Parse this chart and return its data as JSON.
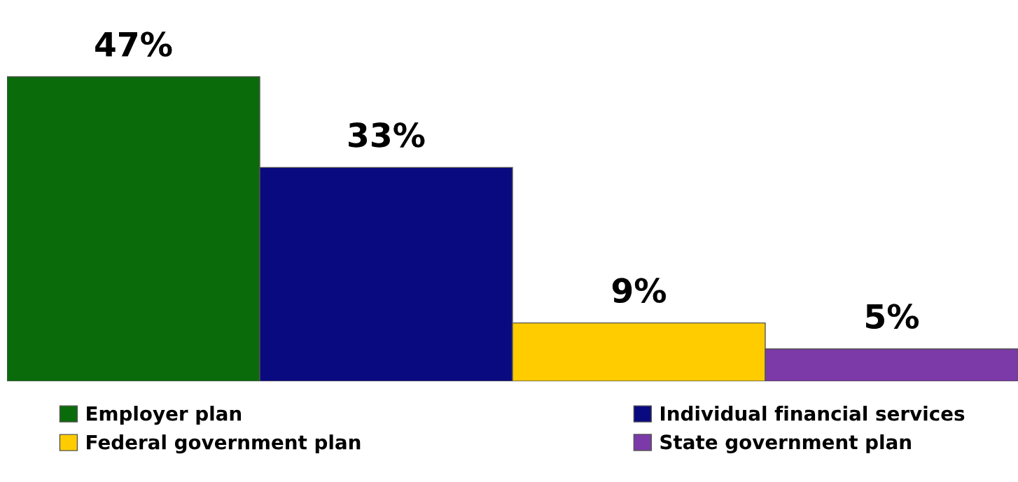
{
  "chart_data": {
    "type": "bar",
    "categories": [
      null
    ],
    "legend": "bottom",
    "series": [
      {
        "name": "Employer plan",
        "color": "#0a6b0a",
        "values": [
          47
        ],
        "value_labels": [
          "47%"
        ]
      },
      {
        "name": "Individual financial services",
        "color": "#0a0a80",
        "values": [
          33
        ],
        "value_labels": [
          "33%"
        ]
      },
      {
        "name": "Federal government plan",
        "color": "#ffcc00",
        "values": [
          9
        ],
        "value_labels": [
          "9%"
        ]
      },
      {
        "name": "State government plan",
        "color": "#7b3aa8",
        "values": [
          5
        ],
        "value_labels": [
          "5%"
        ]
      }
    ]
  }
}
